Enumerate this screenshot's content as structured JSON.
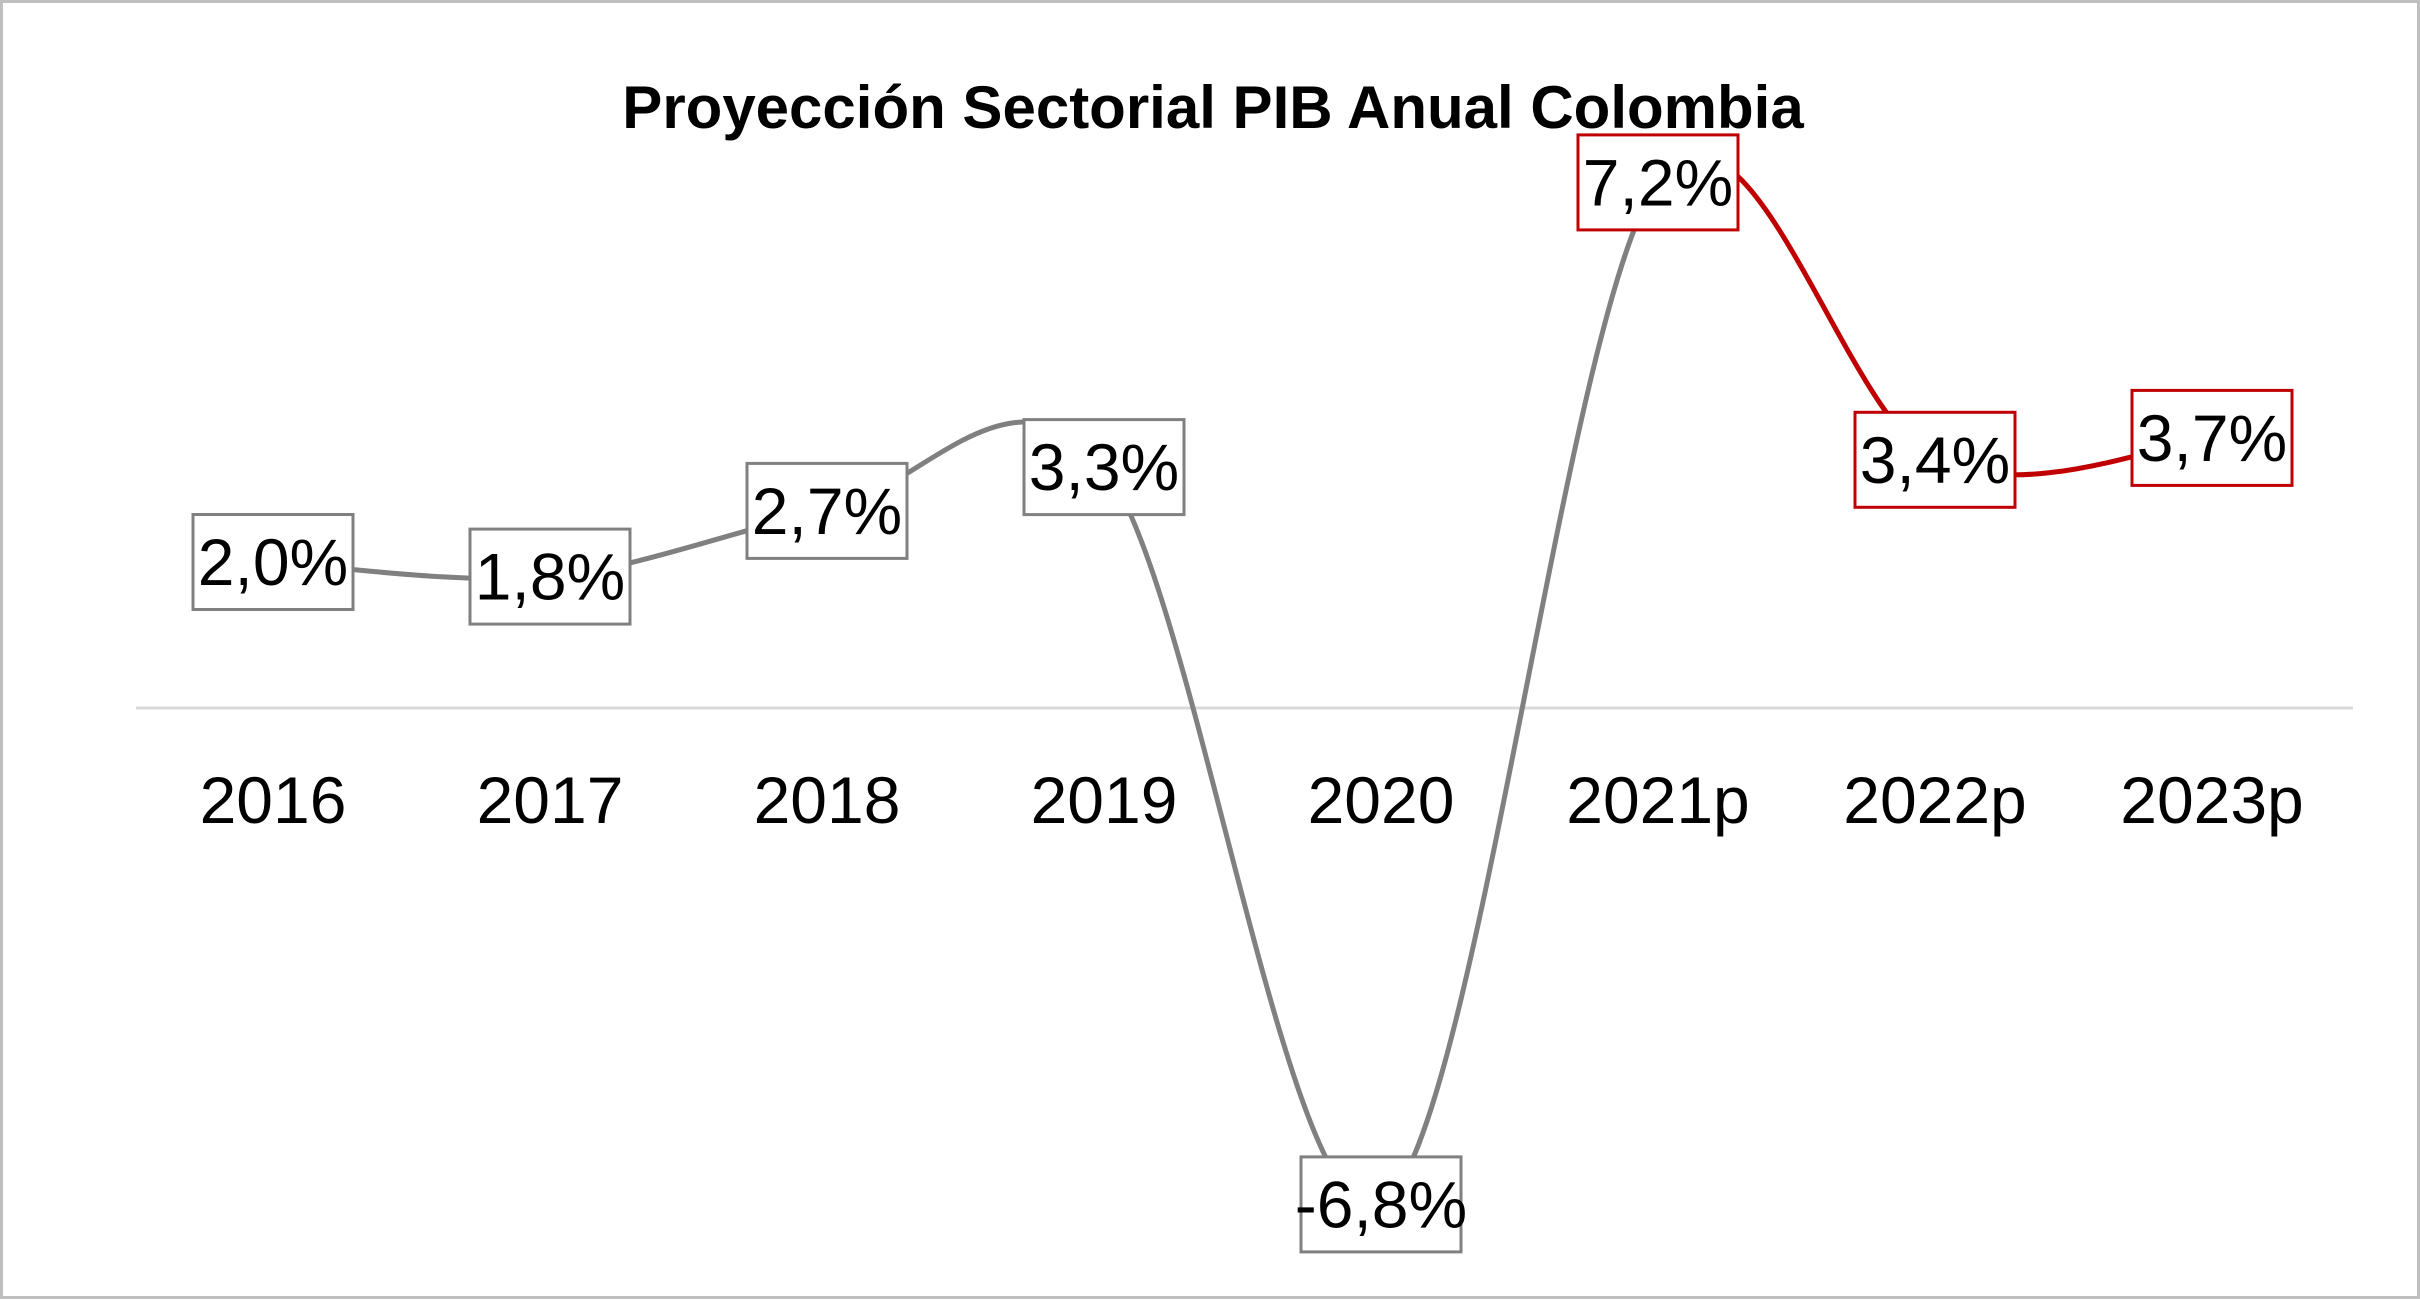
{
  "chart_data": {
    "type": "line",
    "title": "Proyección Sectorial PIB Anual Colombia",
    "xlabel": "",
    "ylabel": "",
    "categories": [
      "2016",
      "2017",
      "2018",
      "2019",
      "2020",
      "2021p",
      "2022p",
      "2023p"
    ],
    "series": [
      {
        "values": [
          2.0,
          1.8,
          2.7,
          3.3,
          -6.8,
          7.2,
          3.4,
          3.7
        ],
        "labels": [
          "2,0%",
          "1,8%",
          "2,7%",
          "3,3%",
          "-6,8%",
          "7,2%",
          "3,4%",
          "3,7%"
        ]
      }
    ],
    "ylim": [
      -8,
      9
    ],
    "grid": false,
    "legend": "none",
    "colors": {
      "historical": "#808080",
      "projection": "#c00000",
      "axis_line": "#d9d9d9",
      "frame_border": "#bfbfbf"
    },
    "projection_start_index": 5
  }
}
